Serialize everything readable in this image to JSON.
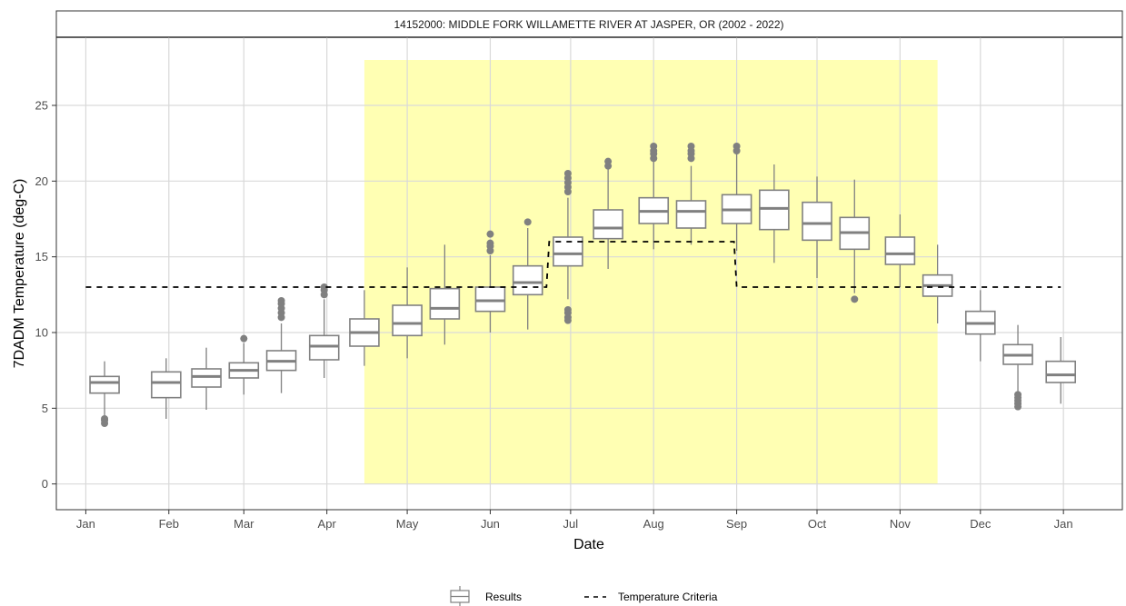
{
  "chart_data": {
    "type": "boxplot",
    "title": "14152000: MIDDLE FORK WILLAMETTE RIVER AT JASPER, OR (2002 - 2022)",
    "xlabel": "Date",
    "ylabel": "7DADM Temperature (deg-C)",
    "ylim": [
      -1.7,
      29.5
    ],
    "y_ticks": [
      0,
      5,
      10,
      15,
      20,
      25
    ],
    "x_domain": [
      "2021-12-21",
      "2023-01-23"
    ],
    "x_ticks": [
      {
        "date": "2022-01-01",
        "label": "Jan"
      },
      {
        "date": "2022-02-01",
        "label": "Feb"
      },
      {
        "date": "2022-03-01",
        "label": "Mar"
      },
      {
        "date": "2022-04-01",
        "label": "Apr"
      },
      {
        "date": "2022-05-01",
        "label": "May"
      },
      {
        "date": "2022-06-01",
        "label": "Jun"
      },
      {
        "date": "2022-07-01",
        "label": "Jul"
      },
      {
        "date": "2022-08-01",
        "label": "Aug"
      },
      {
        "date": "2022-09-01",
        "label": "Sep"
      },
      {
        "date": "2022-10-01",
        "label": "Oct"
      },
      {
        "date": "2022-11-01",
        "label": "Nov"
      },
      {
        "date": "2022-12-01",
        "label": "Dec"
      },
      {
        "date": "2023-01-01",
        "label": "Jan"
      }
    ],
    "grid": true,
    "highlight_period": {
      "start": "2022-04-15",
      "end": "2022-11-15",
      "ymin": 0,
      "ymax": 28,
      "color": "#ffffb3"
    },
    "boxes": [
      {
        "date": "2022-01-08",
        "min": 4.5,
        "q1": 6.0,
        "median": 6.7,
        "q3": 7.1,
        "max": 8.1,
        "outliers": [
          4.0,
          4.2,
          4.3
        ]
      },
      {
        "date": "2022-01-31",
        "min": 4.3,
        "q1": 5.7,
        "median": 6.7,
        "q3": 7.4,
        "max": 8.3,
        "outliers": []
      },
      {
        "date": "2022-02-15",
        "min": 4.9,
        "q1": 6.4,
        "median": 7.1,
        "q3": 7.6,
        "max": 9.0,
        "outliers": []
      },
      {
        "date": "2022-03-01",
        "min": 5.9,
        "q1": 7.0,
        "median": 7.5,
        "q3": 8.0,
        "max": 9.3,
        "outliers": [
          9.6
        ]
      },
      {
        "date": "2022-03-15",
        "min": 6.0,
        "q1": 7.5,
        "median": 8.1,
        "q3": 8.8,
        "max": 10.6,
        "outliers": [
          11.0,
          11.3,
          11.6,
          11.9,
          12.1
        ]
      },
      {
        "date": "2022-03-31",
        "min": 7.0,
        "q1": 8.2,
        "median": 9.1,
        "q3": 9.8,
        "max": 12.2,
        "outliers": [
          12.5,
          12.8,
          13.0
        ]
      },
      {
        "date": "2022-04-15",
        "min": 7.8,
        "q1": 9.1,
        "median": 10.0,
        "q3": 10.9,
        "max": 12.8,
        "outliers": []
      },
      {
        "date": "2022-05-01",
        "min": 8.3,
        "q1": 9.8,
        "median": 10.6,
        "q3": 11.8,
        "max": 14.3,
        "outliers": []
      },
      {
        "date": "2022-05-15",
        "min": 9.2,
        "q1": 10.9,
        "median": 11.6,
        "q3": 12.9,
        "max": 15.8,
        "outliers": []
      },
      {
        "date": "2022-06-01",
        "min": 10.0,
        "q1": 11.4,
        "median": 12.1,
        "q3": 13.0,
        "max": 15.1,
        "outliers": [
          15.4,
          15.7,
          15.9,
          16.5
        ]
      },
      {
        "date": "2022-06-15",
        "min": 10.2,
        "q1": 12.5,
        "median": 13.3,
        "q3": 14.4,
        "max": 16.9,
        "outliers": [
          17.3
        ]
      },
      {
        "date": "2022-06-30",
        "min": 12.2,
        "q1": 14.4,
        "median": 15.2,
        "q3": 16.3,
        "max": 18.9,
        "outliers": [
          10.8,
          11.0,
          11.3,
          11.5,
          19.3,
          19.6,
          19.9,
          20.2,
          20.5
        ]
      },
      {
        "date": "2022-07-15",
        "min": 14.2,
        "q1": 16.2,
        "median": 16.9,
        "q3": 18.1,
        "max": 20.8,
        "outliers": [
          21.0,
          21.3
        ]
      },
      {
        "date": "2022-08-01",
        "min": 15.5,
        "q1": 17.2,
        "median": 18.0,
        "q3": 18.9,
        "max": 21.3,
        "outliers": [
          21.5,
          21.8,
          22.0,
          22.3
        ]
      },
      {
        "date": "2022-08-15",
        "min": 15.8,
        "q1": 16.9,
        "median": 18.0,
        "q3": 18.7,
        "max": 21.0,
        "outliers": [
          21.5,
          21.8,
          22.0,
          22.3
        ]
      },
      {
        "date": "2022-09-01",
        "min": 15.4,
        "q1": 17.2,
        "median": 18.1,
        "q3": 19.1,
        "max": 21.8,
        "outliers": [
          22.0,
          22.3
        ]
      },
      {
        "date": "2022-09-15",
        "min": 14.6,
        "q1": 16.8,
        "median": 18.2,
        "q3": 19.4,
        "max": 21.1,
        "outliers": []
      },
      {
        "date": "2022-10-01",
        "min": 13.6,
        "q1": 16.1,
        "median": 17.2,
        "q3": 18.6,
        "max": 20.3,
        "outliers": []
      },
      {
        "date": "2022-10-15",
        "min": 12.6,
        "q1": 15.5,
        "median": 16.6,
        "q3": 17.6,
        "max": 20.1,
        "outliers": [
          12.2
        ]
      },
      {
        "date": "2022-11-01",
        "min": 13.0,
        "q1": 14.5,
        "median": 15.2,
        "q3": 16.3,
        "max": 17.8,
        "outliers": []
      },
      {
        "date": "2022-11-15",
        "min": 10.6,
        "q1": 12.4,
        "median": 13.1,
        "q3": 13.8,
        "max": 15.8,
        "outliers": []
      },
      {
        "date": "2022-12-01",
        "min": 8.1,
        "q1": 9.9,
        "median": 10.6,
        "q3": 11.4,
        "max": 12.8,
        "outliers": []
      },
      {
        "date": "2022-12-15",
        "min": 6.1,
        "q1": 7.9,
        "median": 8.5,
        "q3": 9.2,
        "max": 10.5,
        "outliers": [
          5.1,
          5.3,
          5.5,
          5.7,
          5.9
        ]
      },
      {
        "date": "2022-12-31",
        "min": 5.3,
        "q1": 6.7,
        "median": 7.2,
        "q3": 8.1,
        "max": 9.7,
        "outliers": []
      }
    ],
    "criteria_line": [
      {
        "date": "2022-01-01",
        "value": 13
      },
      {
        "date": "2022-06-22",
        "value": 13
      },
      {
        "date": "2022-06-23",
        "value": 16
      },
      {
        "date": "2022-08-31",
        "value": 16
      },
      {
        "date": "2022-09-01",
        "value": 13
      },
      {
        "date": "2022-12-31",
        "value": 13
      }
    ],
    "legend": {
      "position": "bottom",
      "entries": [
        {
          "label": "Results",
          "type": "box"
        },
        {
          "label": "Temperature Criteria",
          "type": "dashed-line"
        }
      ]
    },
    "colors": {
      "box_stroke": "#808080",
      "outlier": "#808080",
      "criteria": "#000000",
      "highlight": "#ffffb3",
      "grid": "#d9d9d9"
    }
  }
}
